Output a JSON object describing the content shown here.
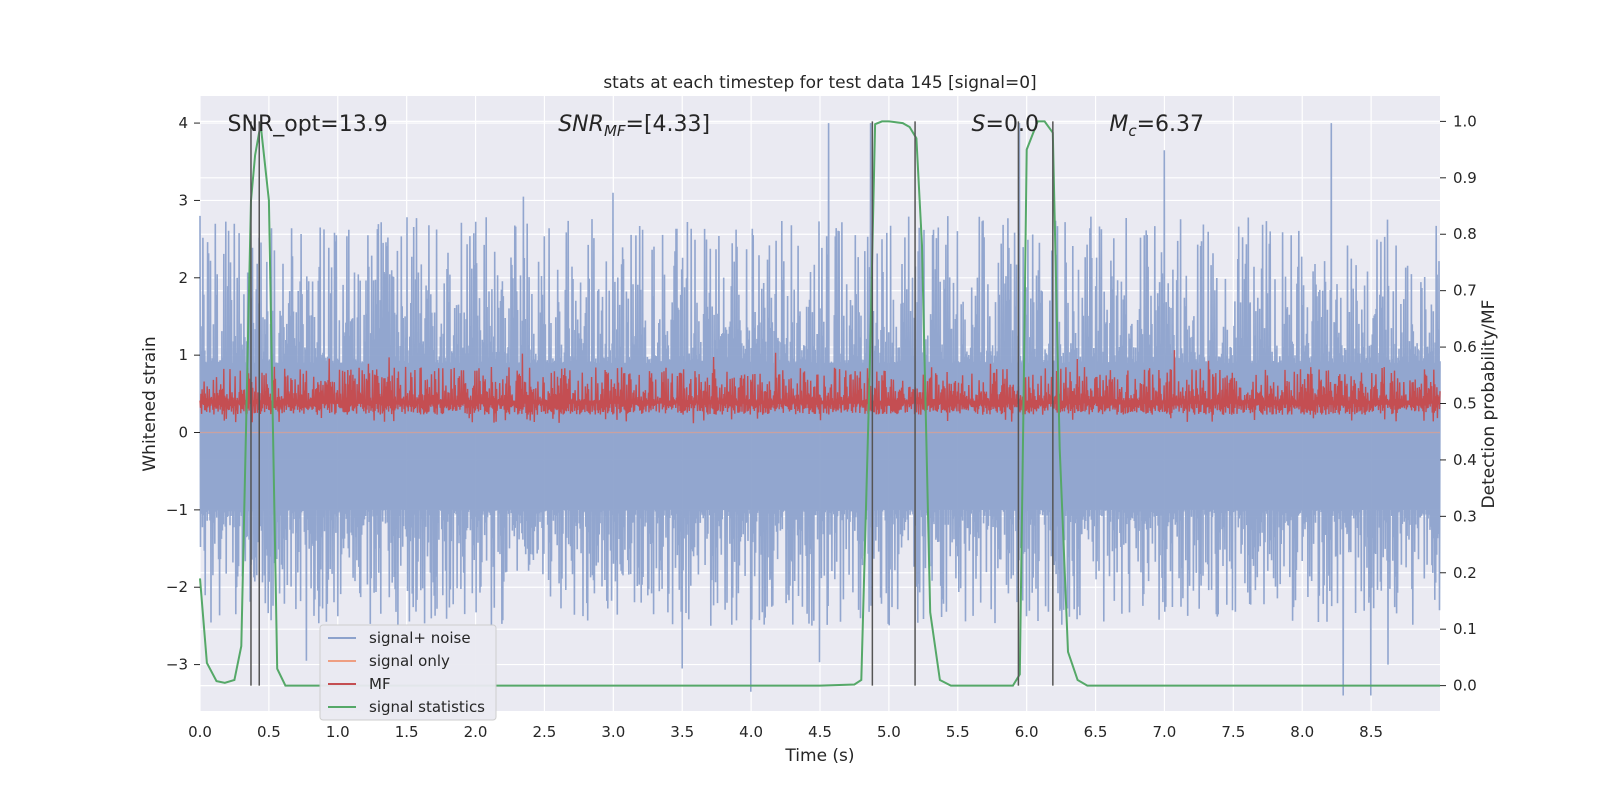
{
  "chart_data": {
    "type": "line",
    "title": "stats at each timestep for test data 145 [signal=0]",
    "xlabel": "Time (s)",
    "ylabel": "Whitened strain",
    "y2label": "Detection probability/MF",
    "xlim": [
      0.0,
      9.0
    ],
    "ylim": [
      -3.6,
      4.35
    ],
    "y2lim": [
      -0.045,
      1.045
    ],
    "xticks": [
      "0.0",
      "0.5",
      "1.0",
      "1.5",
      "2.0",
      "2.5",
      "3.0",
      "3.5",
      "4.0",
      "4.5",
      "5.0",
      "5.5",
      "6.0",
      "6.5",
      "7.0",
      "7.5",
      "8.0",
      "8.5"
    ],
    "yticks": [
      4,
      3,
      2,
      1,
      0,
      -1,
      -2,
      -3
    ],
    "ytick_labels": [
      "4",
      "3",
      "2",
      "1",
      "0",
      "−1",
      "−2",
      "−3"
    ],
    "y2ticks": [
      "1.0",
      "0.9",
      "0.8",
      "0.7",
      "0.6",
      "0.5",
      "0.4",
      "0.3",
      "0.2",
      "0.1",
      "0.0"
    ],
    "grid": true,
    "legend_position": "lower-left",
    "annotations": [
      {
        "text": "SNR_opt=13.9",
        "x": 0.2
      },
      {
        "text": "SNR_MF=[4.33]",
        "x": 2.6
      },
      {
        "text": "S=0.0",
        "x": 5.6
      },
      {
        "text": "M_c=6.37",
        "x": 6.6
      }
    ],
    "vertical_lines": [
      0.37,
      0.43,
      4.88,
      5.19,
      5.94,
      6.19
    ],
    "series": [
      {
        "name": "signal+ noise",
        "color": "#8da2cc",
        "axis": "left",
        "style": "noise",
        "baseline": 0.25,
        "upper_max": 4.0,
        "lower_min": -3.4,
        "spikes": [
          [
            4.56,
            4.0
          ],
          [
            4.87,
            4.0
          ],
          [
            5.95,
            4.0
          ],
          [
            7.0,
            3.65
          ],
          [
            8.21,
            4.0
          ],
          [
            0.0,
            2.8
          ],
          [
            2.35,
            3.05
          ],
          [
            3.0,
            3.1
          ],
          [
            4.0,
            -3.35
          ],
          [
            3.5,
            -3.05
          ],
          [
            8.3,
            -3.4
          ],
          [
            8.5,
            -3.4
          ],
          [
            0.77,
            -2.95
          ],
          [
            8.62,
            -3.0
          ],
          [
            4.5,
            -2.97
          ]
        ]
      },
      {
        "name": "signal only",
        "color": "#ee9e82",
        "axis": "left",
        "style": "flat",
        "values": 0
      },
      {
        "name": "MF",
        "color": "#c44e52",
        "axis": "right",
        "style": "mf",
        "baseline": 0.5,
        "band_low": 0.48,
        "band_high": 0.56,
        "max": 0.595,
        "min": 0.465
      },
      {
        "name": "signal statistics",
        "color": "#55a868",
        "axis": "right",
        "style": "line",
        "x": [
          0.0,
          0.05,
          0.12,
          0.18,
          0.25,
          0.3,
          0.37,
          0.4,
          0.44,
          0.5,
          0.56,
          0.62,
          0.7,
          1.0,
          2.0,
          3.0,
          4.0,
          4.5,
          4.75,
          4.8,
          4.86,
          4.9,
          4.95,
          5.0,
          5.1,
          5.15,
          5.2,
          5.24,
          5.3,
          5.37,
          5.45,
          5.6,
          5.8,
          5.9,
          5.95,
          5.98,
          6.0,
          6.08,
          6.13,
          6.19,
          6.24,
          6.3,
          6.37,
          6.44,
          6.5,
          7.0,
          8.0,
          9.0
        ],
        "y": [
          0.19,
          0.04,
          0.008,
          0.005,
          0.01,
          0.07,
          0.86,
          0.94,
          0.995,
          0.86,
          0.03,
          0.0,
          0.0,
          0.0,
          0.0,
          0.0,
          0.0,
          0.0,
          0.002,
          0.01,
          0.55,
          0.995,
          1.0,
          1.0,
          0.997,
          0.99,
          0.97,
          0.78,
          0.13,
          0.01,
          0.0,
          0.0,
          0.0,
          0.0,
          0.02,
          0.55,
          0.95,
          1.0,
          1.0,
          0.98,
          0.42,
          0.06,
          0.01,
          0.0,
          0.0,
          0.0,
          0.0,
          0.0
        ]
      }
    ]
  }
}
